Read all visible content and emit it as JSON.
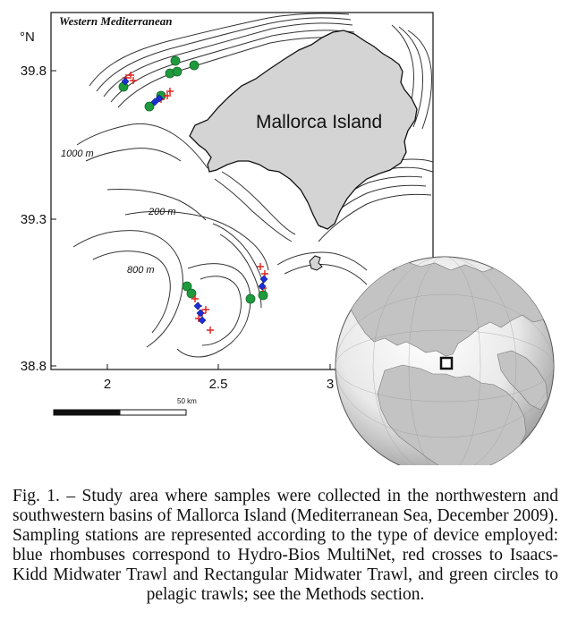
{
  "map": {
    "region_title": "Western Mediterranean",
    "lat_unit": "°N",
    "lat_ticks": [
      "39.8",
      "39.3",
      "38.8"
    ],
    "lon_ticks": [
      "2",
      "2.5",
      "3"
    ],
    "island_label": "Mallorca Island",
    "contour_labels": [
      "1000 m",
      "200 m",
      "800 m"
    ],
    "scale_label": "50 km",
    "colors": {
      "multinet": "#1d2fd6",
      "ikmt_rmt": "#e0211b",
      "pelagic_trawl": "#1f9a3c",
      "land": "#d4d4d4"
    },
    "symbols": {
      "multinet": "rhombus",
      "ikmt_rmt": "cross",
      "pelagic_trawl": "circle"
    }
  },
  "caption": {
    "text": "Fig. 1. – Study area where samples were collected in the northwestern and southwestern basins of Mallorca Island (Mediterranean Sea, December 2009). Sampling stations are represented according to the type of device employed: blue rhombuses correspond to Hydro-Bios MultiNet, red crosses to Isaacs-Kidd Midwater Trawl and Rectangular Midwater Trawl, and green circles to pelagic trawls; see the Methods section."
  }
}
